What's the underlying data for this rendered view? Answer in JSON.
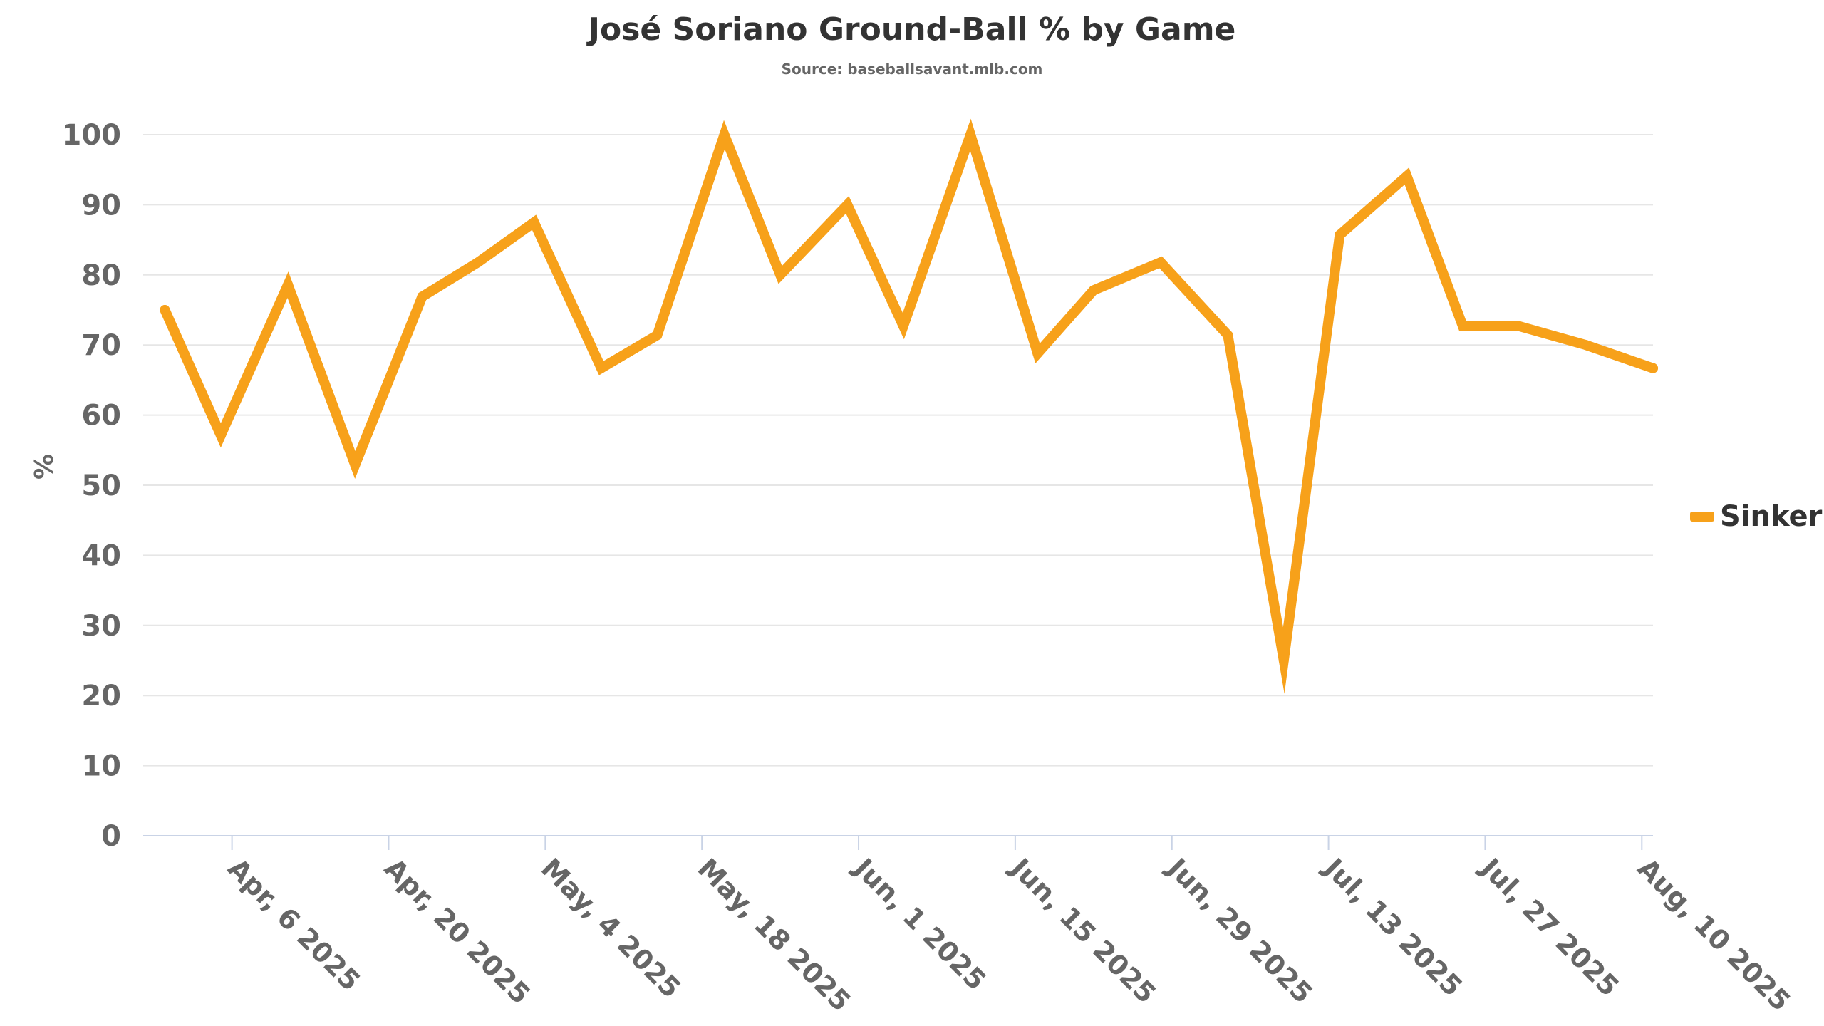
{
  "chart_data": {
    "type": "line",
    "title": "José Soriano Ground-Ball % by Game",
    "subtitle": "Source: baseballsavant.mlb.com",
    "xlabel": "",
    "ylabel": "%",
    "ylim": [
      0,
      100
    ],
    "yticks": [
      0,
      10,
      20,
      30,
      40,
      50,
      60,
      70,
      80,
      90,
      100
    ],
    "xlim": [
      "2025-03-29",
      "2025-08-11"
    ],
    "xticks": [
      {
        "date": "2025-04-06",
        "label": "Apr, 6 2025"
      },
      {
        "date": "2025-04-20",
        "label": "Apr, 20 2025"
      },
      {
        "date": "2025-05-04",
        "label": "May, 4 2025"
      },
      {
        "date": "2025-05-18",
        "label": "May, 18 2025"
      },
      {
        "date": "2025-06-01",
        "label": "Jun, 1 2025"
      },
      {
        "date": "2025-06-15",
        "label": "Jun, 15 2025"
      },
      {
        "date": "2025-06-29",
        "label": "Jun, 29 2025"
      },
      {
        "date": "2025-07-13",
        "label": "Jul, 13 2025"
      },
      {
        "date": "2025-07-27",
        "label": "Jul, 27 2025"
      },
      {
        "date": "2025-08-10",
        "label": "Aug, 10 2025"
      }
    ],
    "grid": true,
    "legend_position": "right",
    "series": [
      {
        "name": "Sinker",
        "color": "#F7A11A",
        "points": [
          {
            "x": "2025-03-31",
            "y": 75
          },
          {
            "x": "2025-04-05",
            "y": 57.1
          },
          {
            "x": "2025-04-11",
            "y": 78.6
          },
          {
            "x": "2025-04-17",
            "y": 52.9
          },
          {
            "x": "2025-04-23",
            "y": 76.9
          },
          {
            "x": "2025-04-28",
            "y": 81.8
          },
          {
            "x": "2025-05-03",
            "y": 87.5
          },
          {
            "x": "2025-05-09",
            "y": 66.7
          },
          {
            "x": "2025-05-14",
            "y": 71.4
          },
          {
            "x": "2025-05-20",
            "y": 100
          },
          {
            "x": "2025-05-25",
            "y": 80
          },
          {
            "x": "2025-05-31",
            "y": 90
          },
          {
            "x": "2025-06-05",
            "y": 72.7
          },
          {
            "x": "2025-06-11",
            "y": 100
          },
          {
            "x": "2025-06-17",
            "y": 68.8
          },
          {
            "x": "2025-06-22",
            "y": 77.8
          },
          {
            "x": "2025-06-28",
            "y": 81.8
          },
          {
            "x": "2025-07-04",
            "y": 71.4
          },
          {
            "x": "2025-07-09",
            "y": 25
          },
          {
            "x": "2025-07-14",
            "y": 85.7
          },
          {
            "x": "2025-07-20",
            "y": 94.1
          },
          {
            "x": "2025-07-25",
            "y": 72.7
          },
          {
            "x": "2025-07-30",
            "y": 72.7
          },
          {
            "x": "2025-08-05",
            "y": 70
          },
          {
            "x": "2025-08-11",
            "y": 66.7
          }
        ]
      }
    ]
  }
}
